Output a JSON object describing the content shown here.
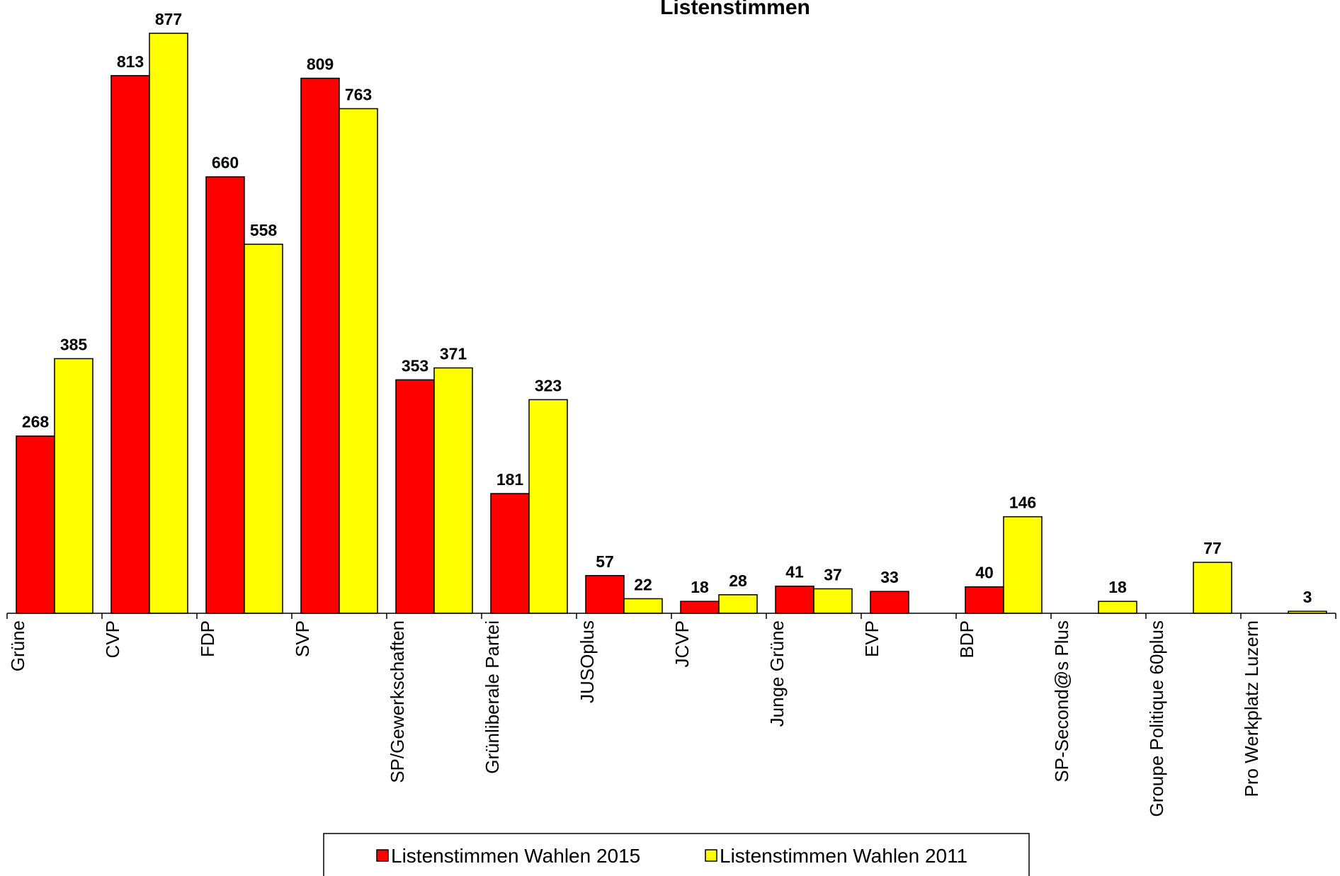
{
  "chart_data": {
    "type": "bar",
    "title": "Listenstimmen",
    "categories": [
      "Grüne",
      "CVP",
      "FDP",
      "SVP",
      "SP/Gewerkschaften",
      "Grünliberale Partei",
      "JUSOplus",
      "JCVP",
      "Junge Grüne",
      "EVP",
      "BDP",
      "SP-Second@s Plus",
      "Groupe Politique 60plus",
      "Pro Werkplatz Luzern"
    ],
    "series": [
      {
        "name": "Listenstimmen Wahlen 2015",
        "color": "#ff0000",
        "values": [
          268,
          813,
          660,
          809,
          353,
          181,
          57,
          18,
          41,
          33,
          40,
          null,
          null,
          null
        ]
      },
      {
        "name": "Listenstimmen Wahlen 2011",
        "color": "#ffff00",
        "values": [
          385,
          877,
          558,
          763,
          371,
          323,
          22,
          28,
          37,
          null,
          146,
          18,
          77,
          3
        ]
      }
    ],
    "ylim": [
      0,
      900
    ],
    "grid": false,
    "legend": "bottom"
  }
}
